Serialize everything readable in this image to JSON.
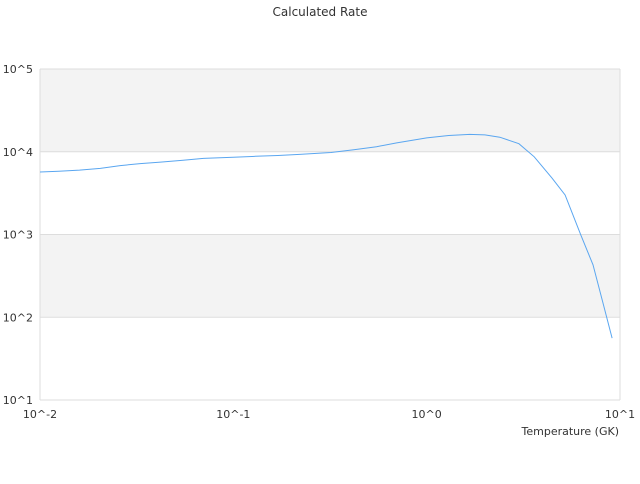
{
  "chart_data": {
    "type": "line",
    "title": "Calculated Rate",
    "xlabel": "Temperature (GK)",
    "ylabel": "",
    "x_scale": "log",
    "y_scale": "log",
    "xlim": [
      0.01,
      10
    ],
    "ylim": [
      10,
      100000
    ],
    "x_ticks": [
      "10^-2",
      "10^-1",
      "10^0",
      "10^1"
    ],
    "y_ticks": [
      "10^1",
      "10^2",
      "10^3",
      "10^4",
      "10^5"
    ],
    "grid": "horizontal bands",
    "legend": "none",
    "line_color": "#5aa6f0",
    "band_color": "#f3f3f3",
    "series": [
      {
        "x": [
          0.01,
          0.0125,
          0.016,
          0.0205,
          0.026,
          0.033,
          0.042,
          0.055,
          0.07,
          0.1,
          0.13,
          0.17,
          0.22,
          0.32,
          0.42,
          0.55,
          0.7,
          1.0,
          1.3,
          1.67,
          2.0,
          2.39,
          3.0,
          3.6,
          4.45,
          5.2,
          6.28,
          7.25,
          8.1,
          9.1
        ],
        "y": [
          5700,
          5800,
          6000,
          6300,
          6800,
          7200,
          7500,
          7900,
          8300,
          8600,
          8800,
          9000,
          9300,
          9800,
          10600,
          11500,
          12800,
          14700,
          15700,
          16200,
          16000,
          15000,
          12500,
          8700,
          4800,
          3000,
          980,
          430,
          160,
          56
        ]
      }
    ]
  }
}
